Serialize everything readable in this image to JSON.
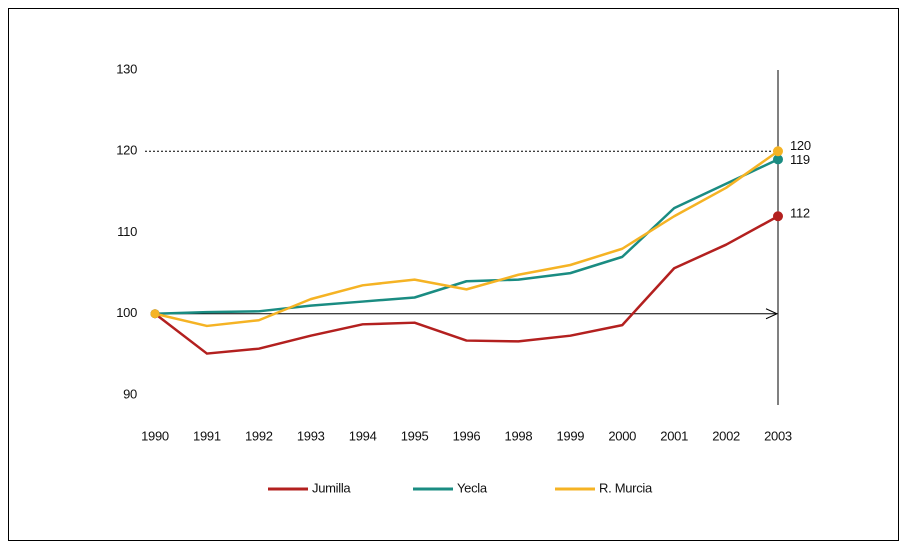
{
  "chart_data": {
    "type": "line",
    "categories": [
      "1990",
      "1991",
      "1992",
      "1993",
      "1994",
      "1995",
      "1996",
      "1998",
      "1999",
      "2000",
      "2001",
      "2002",
      "2003"
    ],
    "series": [
      {
        "name": "Jumilla",
        "color": "#b3201f",
        "values": [
          100,
          95.1,
          95.7,
          97.3,
          98.7,
          98.9,
          96.7,
          96.6,
          97.3,
          98.6,
          105.6,
          108.5,
          112
        ]
      },
      {
        "name": "Yecla",
        "color": "#1a8c82",
        "values": [
          100,
          100.2,
          100.3,
          101.0,
          101.5,
          102.0,
          104.0,
          104.2,
          105.0,
          107.0,
          113.0,
          116.0,
          119
        ]
      },
      {
        "name": "R. Murcia",
        "color": "#f5b324",
        "values": [
          100,
          98.5,
          99.2,
          101.8,
          103.5,
          104.2,
          103.0,
          104.8,
          106.0,
          108.0,
          112.0,
          115.5,
          120
        ]
      }
    ],
    "ylim": [
      90,
      130
    ],
    "yticks": [
      90,
      100,
      110,
      120,
      130
    ],
    "hline": 120,
    "baseline": 100,
    "end_labels": true,
    "legend": "bottom"
  }
}
